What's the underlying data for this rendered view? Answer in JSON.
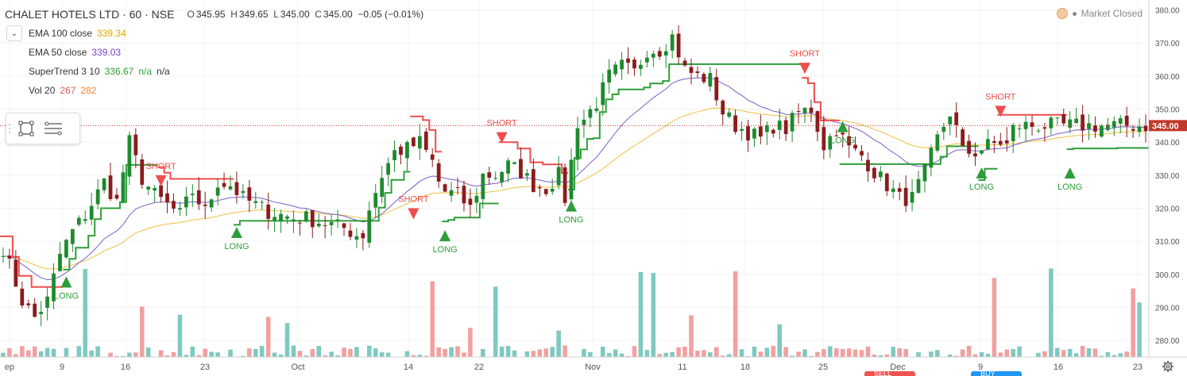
{
  "symbol": {
    "name": "CHALET HOTELS LTD",
    "interval": "60",
    "exchange": "NSE",
    "o_label": "O",
    "o": "345.95",
    "h_label": "H",
    "h": "349.65",
    "l_label": "L",
    "l": "345.00",
    "c_label": "C",
    "c": "345.00",
    "change": "−0.05 (−0.01%)"
  },
  "indicators": [
    {
      "name": "EMA 100 close",
      "values": [
        "339.34"
      ],
      "color": "#f2a900"
    },
    {
      "name": "EMA 50 close",
      "values": [
        "339.03"
      ],
      "color": "#7b3fc2"
    },
    {
      "name": "SuperTrend 3 10",
      "values": [
        "336.67",
        "n/a",
        "n/a"
      ],
      "color": "#2e9e3a"
    },
    {
      "name": "Vol 20",
      "values": [
        "267",
        "282"
      ],
      "colors": [
        "#e35c5c",
        "#ef8a3a"
      ]
    }
  ],
  "market_status": "Market Closed",
  "last_price_label": "345.00",
  "trade_buttons": {
    "sell": "SELL",
    "buy": "BUY"
  },
  "colors": {
    "up": "#1f8a2e",
    "down": "#8b1c1c",
    "st_up": "#2e9e3a",
    "st_down": "#ee4d4d",
    "ema100": "#f0c040",
    "ema50": "#7b5fc9",
    "vol_up": "#7fc9c1",
    "vol_down": "#f2a0a0",
    "axis_text": "#555",
    "price_line": "#c0392b"
  },
  "chart_data": {
    "type": "candlestick",
    "ylim": [
      275,
      383
    ],
    "y_ticks": [
      "280.00",
      "290.00",
      "300.00",
      "310.00",
      "320.00",
      "330.00",
      "340.00",
      "350.00",
      "360.00",
      "370.00",
      "380.00"
    ],
    "x_labels": [
      "ep",
      "9",
      "16",
      "23",
      "Oct",
      "14",
      "22",
      "Nov",
      "11",
      "18",
      "25",
      "Dec",
      "9",
      "16",
      "23"
    ],
    "anchors": [
      [
        0,
        308
      ],
      [
        3,
        292
      ],
      [
        5,
        287
      ],
      [
        7,
        292
      ],
      [
        9,
        306
      ],
      [
        11,
        313
      ],
      [
        13,
        318
      ],
      [
        16,
        328
      ],
      [
        18,
        322
      ],
      [
        20,
        340
      ],
      [
        22,
        329
      ],
      [
        24,
        324
      ],
      [
        26,
        321
      ],
      [
        28,
        318
      ],
      [
        30,
        325
      ],
      [
        32,
        319
      ],
      [
        34,
        328
      ],
      [
        36,
        327
      ],
      [
        38,
        323
      ],
      [
        40,
        321
      ],
      [
        42,
        319
      ],
      [
        44,
        318
      ],
      [
        46,
        317
      ],
      [
        48,
        317
      ],
      [
        50,
        316
      ],
      [
        52,
        315
      ],
      [
        54,
        314
      ],
      [
        56,
        312
      ],
      [
        57,
        312
      ],
      [
        58,
        320
      ],
      [
        60,
        330
      ],
      [
        62,
        337
      ],
      [
        64,
        338
      ],
      [
        66,
        340
      ],
      [
        68,
        334
      ],
      [
        69,
        328
      ],
      [
        70,
        325
      ],
      [
        72,
        324
      ],
      [
        74,
        320
      ],
      [
        76,
        330
      ],
      [
        78,
        330
      ],
      [
        80,
        333
      ],
      [
        82,
        331
      ],
      [
        84,
        327
      ],
      [
        86,
        326
      ],
      [
        88,
        330
      ],
      [
        89,
        323
      ],
      [
        90,
        334
      ],
      [
        91,
        346
      ],
      [
        92,
        347
      ],
      [
        94,
        352
      ],
      [
        96,
        360
      ],
      [
        98,
        363
      ],
      [
        100,
        361
      ],
      [
        102,
        368
      ],
      [
        104,
        368
      ],
      [
        106,
        372
      ],
      [
        108,
        362
      ],
      [
        110,
        360
      ],
      [
        112,
        359
      ],
      [
        114,
        349
      ],
      [
        116,
        345
      ],
      [
        118,
        343
      ],
      [
        120,
        341
      ],
      [
        122,
        345
      ],
      [
        124,
        344
      ],
      [
        126,
        349
      ],
      [
        128,
        350
      ],
      [
        130,
        339
      ],
      [
        132,
        344
      ],
      [
        134,
        338
      ],
      [
        136,
        336
      ],
      [
        138,
        331
      ],
      [
        140,
        327
      ],
      [
        142,
        323
      ],
      [
        144,
        323
      ],
      [
        146,
        331
      ],
      [
        148,
        341
      ],
      [
        150,
        349
      ],
      [
        151,
        344
      ],
      [
        152,
        337
      ],
      [
        154,
        337
      ],
      [
        156,
        339
      ],
      [
        158,
        340
      ],
      [
        159,
        339
      ],
      [
        160,
        344
      ],
      [
        161,
        345
      ]
    ],
    "events": [
      {
        "type": "LONG",
        "bar": 10,
        "price": 296
      },
      {
        "type": "SHORT",
        "bar": 25,
        "price": 330
      },
      {
        "type": "LONG",
        "bar": 37,
        "price": 311
      },
      {
        "type": "SHORT",
        "bar": 65,
        "price": 320
      },
      {
        "type": "LONG",
        "bar": 70,
        "price": 310
      },
      {
        "type": "SHORT",
        "bar": 79,
        "price": 343
      },
      {
        "type": "LONG",
        "bar": 90,
        "price": 319
      },
      {
        "type": "SHORT",
        "bar": 127,
        "price": 364
      },
      {
        "type": "LONG",
        "bar": 133,
        "price": 343
      },
      {
        "type": "LONG",
        "bar": 155,
        "price": 329
      },
      {
        "type": "SHORT",
        "bar": 158,
        "price": 351
      },
      {
        "type": "LONG",
        "bar": 169,
        "price": 329
      }
    ],
    "volume_max": 310000
  }
}
